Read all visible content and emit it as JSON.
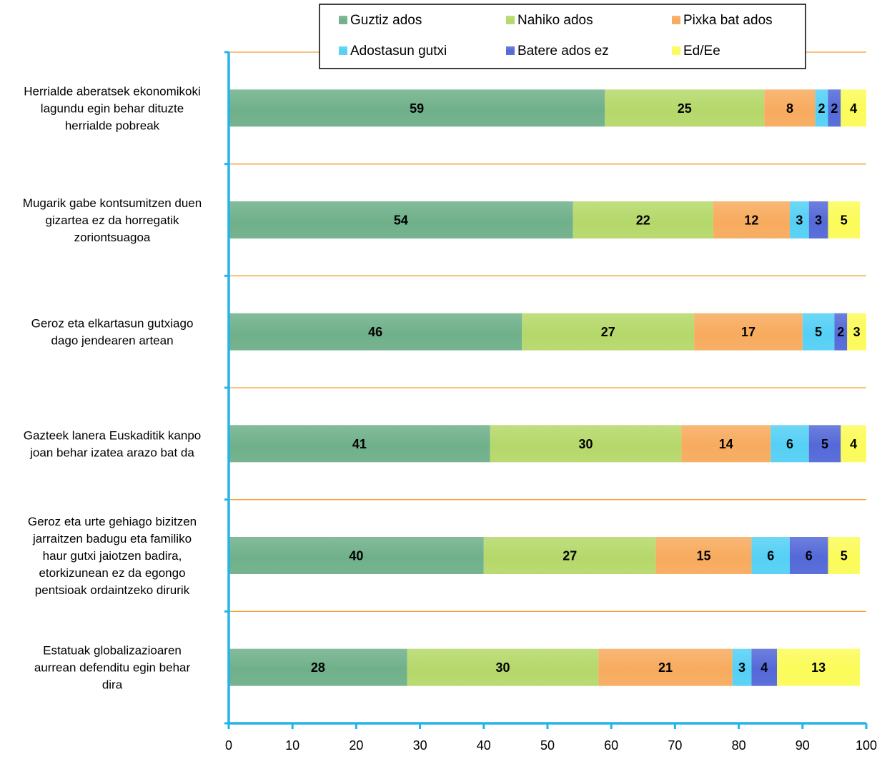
{
  "chart_data": {
    "type": "bar",
    "orientation": "horizontal",
    "stacked": true,
    "categories": [
      "Herrialde aberatsek ekonomikoki lagundu egin behar dituzte herrialde pobreak",
      "Mugarik gabe kontsumitzen duen gizartea ez da horregatik zoriontsuagoa",
      "Geroz eta elkartasun gutxiago dago jendearen artean",
      "Gazteek lanera Euskaditik kanpo joan behar izatea arazo bat da",
      "Geroz eta urte gehiago bizitzen jarraitzen badugu eta familiko haur gutxi jaiotzen badira, etorkizunean ez da egongo pentsioak ordaintzeko dirurik",
      "Estatuak globalizazioaren aurrean defenditu egin behar dira"
    ],
    "category_lines": [
      [
        "Herrialde aberatsek ekonomikoki",
        "lagundu egin behar dituzte",
        "herrialde pobreak"
      ],
      [
        "Mugarik gabe kontsumitzen duen",
        "gizartea ez da horregatik",
        "zoriontsuagoa"
      ],
      [
        "Geroz eta elkartasun gutxiago",
        "dago jendearen artean"
      ],
      [
        "Gazteek lanera Euskaditik kanpo",
        "joan behar izatea arazo bat da"
      ],
      [
        "Geroz eta urte gehiago bizitzen",
        "jarraitzen badugu eta familiko",
        "haur gutxi jaiotzen badira,",
        "etorkizunean ez da egongo",
        "pentsioak ordaintzeko dirurik"
      ],
      [
        "Estatuak globalizazioaren",
        "aurrean defenditu egin behar",
        "dira"
      ]
    ],
    "series": [
      {
        "name": "Guztiz ados",
        "color": "#6fb08a",
        "values": [
          59,
          54,
          46,
          41,
          40,
          28
        ]
      },
      {
        "name": "Nahiko ados",
        "color": "#b5d86a",
        "values": [
          25,
          22,
          27,
          30,
          27,
          30
        ]
      },
      {
        "name": "Pixka bat ados",
        "color": "#f7ab5e",
        "values": [
          8,
          12,
          17,
          14,
          15,
          21
        ]
      },
      {
        "name": "Adostasun gutxi",
        "color": "#55d0f5",
        "values": [
          2,
          3,
          5,
          6,
          6,
          3
        ]
      },
      {
        "name": "Batere ados ez",
        "color": "#5469d8",
        "values": [
          2,
          3,
          2,
          5,
          6,
          4
        ]
      },
      {
        "name": "Ed/Ee",
        "color": "#fbfb5a",
        "values": [
          4,
          5,
          3,
          4,
          5,
          13
        ]
      }
    ],
    "xlim": [
      0,
      100
    ],
    "xticks": [
      "0",
      "10",
      "20",
      "30",
      "40",
      "50",
      "60",
      "70",
      "80",
      "90",
      "100"
    ],
    "grid": true,
    "grid_color": "#f0a030",
    "axis_color": "#22b4e8",
    "legend_position": "top",
    "title": "",
    "xlabel": "",
    "ylabel": ""
  }
}
